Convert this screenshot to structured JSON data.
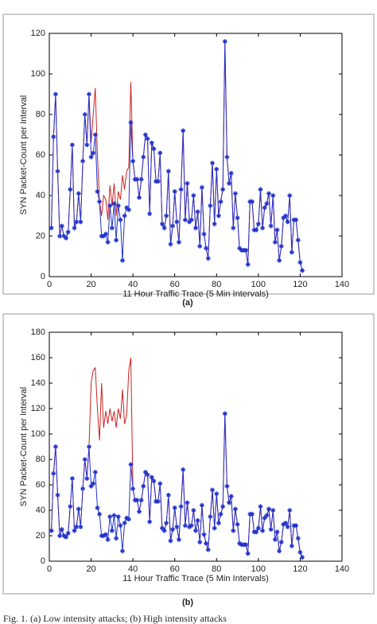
{
  "chart_data": [
    {
      "type": "line",
      "panel_label": "(a)",
      "xlabel": "11 Hour Traffic Trace (5 Min Intervals)",
      "ylabel": "SYN Packet-Count per Interval",
      "xlim": [
        0,
        140
      ],
      "xticks": [
        0,
        20,
        40,
        60,
        80,
        100,
        120,
        140
      ],
      "ylim": [
        0,
        120
      ],
      "yticks": [
        0,
        20,
        40,
        60,
        80,
        100,
        120
      ],
      "x": [
        1,
        2,
        3,
        4,
        5,
        6,
        7,
        8,
        9,
        10,
        11,
        12,
        13,
        14,
        15,
        16,
        17,
        18,
        19,
        20,
        21,
        22,
        23,
        24,
        25,
        26,
        27,
        28,
        29,
        30,
        31,
        32,
        33,
        34,
        35,
        36,
        37,
        38,
        39,
        40,
        41,
        42,
        43,
        44,
        45,
        46,
        47,
        48,
        49,
        50,
        51,
        52,
        53,
        54,
        55,
        56,
        57,
        58,
        59,
        60,
        61,
        62,
        63,
        64,
        65,
        66,
        67,
        68,
        69,
        70,
        71,
        72,
        73,
        74,
        75,
        76,
        77,
        78,
        79,
        80,
        81,
        82,
        83,
        84,
        85,
        86,
        87,
        88,
        89,
        90,
        91,
        92,
        93,
        94,
        95,
        96,
        97,
        98,
        99,
        100,
        101,
        102,
        103,
        104,
        105,
        106,
        107,
        108,
        109,
        110,
        111,
        112,
        113,
        114,
        115,
        116,
        117,
        118,
        119,
        120,
        121
      ],
      "series": [
        {
          "color": "#cc2222",
          "markers": false,
          "values": [
            24,
            69,
            90,
            52,
            20,
            25,
            20,
            19,
            22,
            43,
            65,
            24,
            27,
            41,
            27,
            57,
            80,
            65,
            90,
            66,
            80,
            93,
            60,
            37,
            30,
            40,
            38,
            28,
            45,
            35,
            46,
            30,
            42,
            38,
            50,
            43,
            52,
            54,
            96,
            57,
            48,
            48,
            39,
            48,
            59,
            70,
            68,
            31,
            66,
            63,
            47,
            47,
            61,
            26,
            24,
            30,
            52,
            16,
            25,
            42,
            27,
            17,
            43,
            72,
            28,
            46,
            27,
            28,
            40,
            24,
            32,
            15,
            44,
            21,
            14,
            9,
            35,
            56,
            26,
            53,
            30,
            37,
            43,
            116,
            59,
            46,
            51,
            24,
            41,
            29,
            14,
            13,
            13,
            13,
            6,
            37,
            37,
            23,
            23,
            26,
            43,
            24,
            34,
            36,
            41,
            25,
            40,
            17,
            23,
            8,
            15,
            29,
            30,
            27,
            40,
            12,
            28,
            28,
            18,
            7,
            3
          ]
        },
        {
          "color": "#2233cc",
          "markers": true,
          "values": [
            24,
            69,
            90,
            52,
            20,
            25,
            20,
            19,
            22,
            43,
            65,
            24,
            27,
            41,
            27,
            57,
            80,
            65,
            90,
            59,
            61,
            70,
            42,
            37,
            20,
            20,
            21,
            17,
            35,
            24,
            36,
            18,
            35,
            28,
            8,
            30,
            34,
            33,
            76,
            57,
            48,
            48,
            39,
            48,
            59,
            70,
            68,
            31,
            66,
            63,
            47,
            47,
            61,
            26,
            24,
            30,
            52,
            16,
            25,
            42,
            27,
            17,
            43,
            72,
            28,
            46,
            27,
            28,
            40,
            24,
            32,
            15,
            44,
            21,
            14,
            9,
            35,
            56,
            26,
            53,
            30,
            37,
            43,
            116,
            59,
            46,
            51,
            24,
            41,
            29,
            14,
            13,
            13,
            13,
            6,
            37,
            37,
            23,
            23,
            26,
            43,
            24,
            34,
            36,
            41,
            25,
            40,
            17,
            23,
            8,
            15,
            29,
            30,
            27,
            40,
            12,
            28,
            28,
            18,
            7,
            3
          ]
        }
      ]
    },
    {
      "type": "line",
      "panel_label": "(b)",
      "xlabel": "11 Hour Traffic Trace (5 Min Intervals)",
      "ylabel": "SYN Packet-Count per Interval",
      "xlim": [
        0,
        140
      ],
      "xticks": [
        0,
        20,
        40,
        60,
        80,
        100,
        120,
        140
      ],
      "ylim": [
        0,
        180
      ],
      "yticks": [
        0,
        20,
        40,
        60,
        80,
        100,
        120,
        140,
        160,
        180
      ],
      "x": [
        1,
        2,
        3,
        4,
        5,
        6,
        7,
        8,
        9,
        10,
        11,
        12,
        13,
        14,
        15,
        16,
        17,
        18,
        19,
        20,
        21,
        22,
        23,
        24,
        25,
        26,
        27,
        28,
        29,
        30,
        31,
        32,
        33,
        34,
        35,
        36,
        37,
        38,
        39,
        40,
        41,
        42,
        43,
        44,
        45,
        46,
        47,
        48,
        49,
        50,
        51,
        52,
        53,
        54,
        55,
        56,
        57,
        58,
        59,
        60,
        61,
        62,
        63,
        64,
        65,
        66,
        67,
        68,
        69,
        70,
        71,
        72,
        73,
        74,
        75,
        76,
        77,
        78,
        79,
        80,
        81,
        82,
        83,
        84,
        85,
        86,
        87,
        88,
        89,
        90,
        91,
        92,
        93,
        94,
        95,
        96,
        97,
        98,
        99,
        100,
        101,
        102,
        103,
        104,
        105,
        106,
        107,
        108,
        109,
        110,
        111,
        112,
        113,
        114,
        115,
        116,
        117,
        118,
        119,
        120,
        121
      ],
      "series": [
        {
          "color": "#cc2222",
          "markers": false,
          "values": [
            24,
            69,
            90,
            52,
            20,
            25,
            20,
            19,
            22,
            43,
            65,
            24,
            27,
            41,
            27,
            57,
            80,
            65,
            90,
            140,
            150,
            152,
            120,
            95,
            140,
            105,
            118,
            108,
            120,
            110,
            118,
            105,
            120,
            112,
            135,
            108,
            115,
            150,
            160,
            57,
            48,
            48,
            39,
            48,
            59,
            70,
            68,
            31,
            66,
            63,
            47,
            47,
            61,
            26,
            24,
            30,
            52,
            16,
            25,
            42,
            27,
            17,
            43,
            72,
            28,
            46,
            27,
            28,
            40,
            24,
            32,
            15,
            44,
            21,
            14,
            9,
            35,
            56,
            26,
            53,
            30,
            37,
            43,
            116,
            59,
            46,
            51,
            24,
            41,
            29,
            14,
            13,
            13,
            13,
            6,
            37,
            37,
            23,
            23,
            26,
            43,
            24,
            34,
            36,
            41,
            25,
            40,
            17,
            23,
            8,
            15,
            29,
            30,
            27,
            40,
            12,
            28,
            28,
            18,
            7,
            3
          ]
        },
        {
          "color": "#2233cc",
          "markers": true,
          "values": [
            24,
            69,
            90,
            52,
            20,
            25,
            20,
            19,
            22,
            43,
            65,
            24,
            27,
            41,
            27,
            57,
            80,
            65,
            90,
            59,
            61,
            70,
            42,
            37,
            20,
            20,
            21,
            17,
            35,
            24,
            36,
            18,
            35,
            28,
            8,
            30,
            34,
            33,
            76,
            57,
            48,
            48,
            39,
            48,
            59,
            70,
            68,
            31,
            66,
            63,
            47,
            47,
            61,
            26,
            24,
            30,
            52,
            16,
            25,
            42,
            27,
            17,
            43,
            72,
            28,
            46,
            27,
            28,
            40,
            24,
            32,
            15,
            44,
            21,
            14,
            9,
            35,
            56,
            26,
            53,
            30,
            37,
            43,
            116,
            59,
            46,
            51,
            24,
            41,
            29,
            14,
            13,
            13,
            13,
            6,
            37,
            37,
            23,
            23,
            26,
            43,
            24,
            34,
            36,
            41,
            25,
            40,
            17,
            23,
            8,
            15,
            29,
            30,
            27,
            40,
            12,
            28,
            28,
            18,
            7,
            3
          ]
        }
      ]
    }
  ],
  "caption": "Fig. 1.   (a) Low intensity attacks;  (b) High intensity attacks"
}
